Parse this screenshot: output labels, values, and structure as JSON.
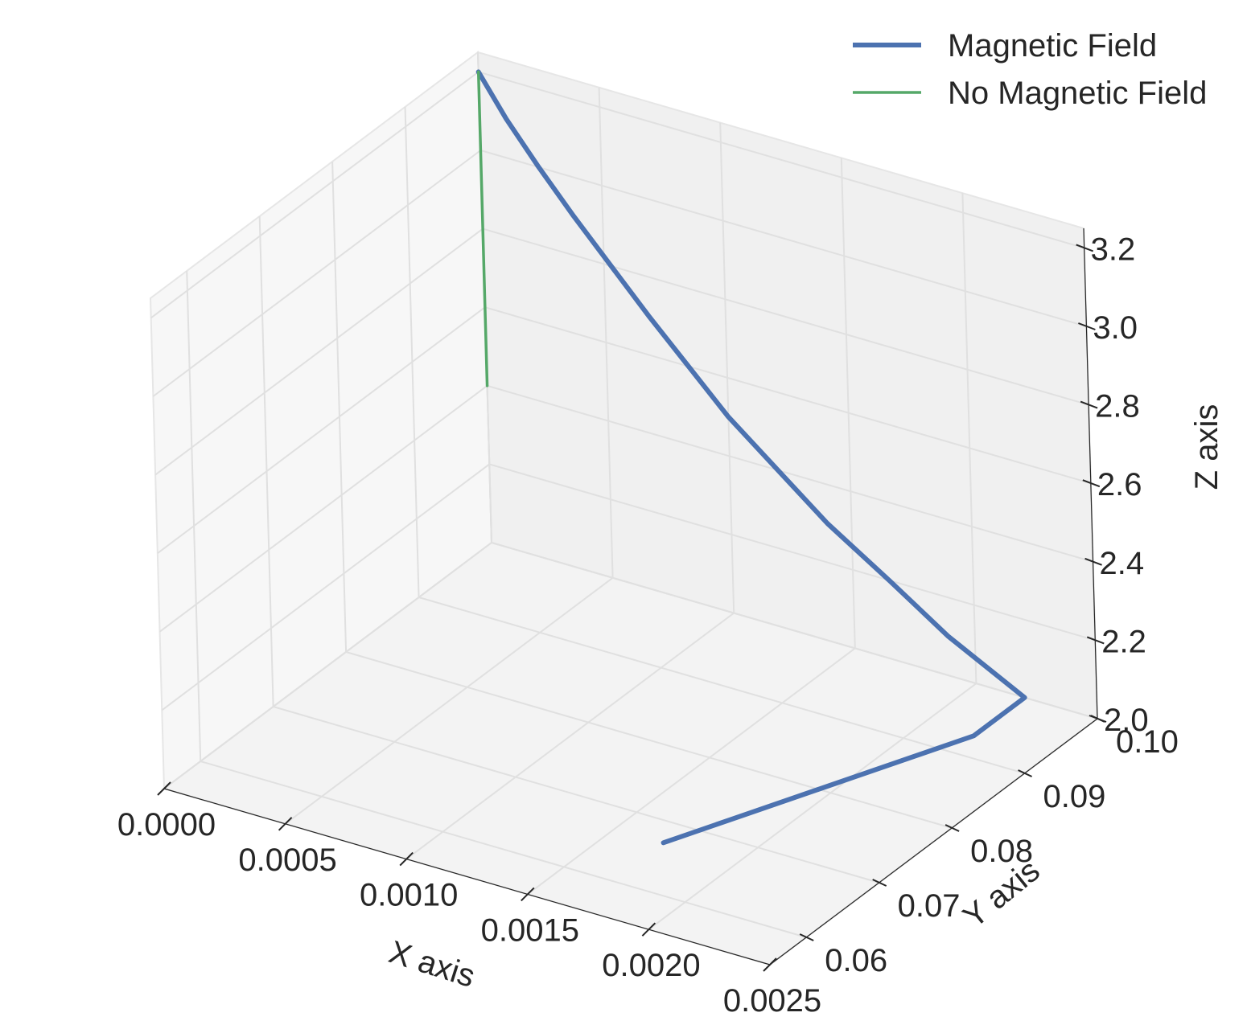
{
  "chart_data": {
    "type": "line",
    "projection": "3d",
    "title": "",
    "xlabel": "X axis",
    "ylabel": "Y axis",
    "zlabel": "Z axis",
    "xlim": [
      0.0,
      0.0025
    ],
    "ylim": [
      0.055,
      0.1
    ],
    "zlim": [
      2.0,
      3.25
    ],
    "x_ticks": [
      {
        "value": 0.0,
        "label": "0.0000"
      },
      {
        "value": 0.0005,
        "label": "0.0005"
      },
      {
        "value": 0.001,
        "label": "0.0010"
      },
      {
        "value": 0.0015,
        "label": "0.0015"
      },
      {
        "value": 0.002,
        "label": "0.0020"
      },
      {
        "value": 0.0025,
        "label": "0.0025"
      }
    ],
    "y_ticks": [
      {
        "value": 0.06,
        "label": "0.06"
      },
      {
        "value": 0.07,
        "label": "0.07"
      },
      {
        "value": 0.08,
        "label": "0.08"
      },
      {
        "value": 0.09,
        "label": "0.09"
      },
      {
        "value": 0.1,
        "label": "0.10"
      }
    ],
    "z_ticks": [
      {
        "value": 2.0,
        "label": "2.0"
      },
      {
        "value": 2.2,
        "label": "2.2"
      },
      {
        "value": 2.4,
        "label": "2.4"
      },
      {
        "value": 2.6,
        "label": "2.6"
      },
      {
        "value": 2.8,
        "label": "2.8"
      },
      {
        "value": 3.0,
        "label": "3.0"
      },
      {
        "value": 3.2,
        "label": "3.2"
      }
    ],
    "grid": true,
    "legend_position": "top-right",
    "series": [
      {
        "name": "Magnetic Field",
        "color": "#4c72b0",
        "points": [
          {
            "x": 0.0,
            "y": 0.1,
            "z": 3.2
          },
          {
            "x": 0.00011,
            "y": 0.1,
            "z": 3.1
          },
          {
            "x": 0.00024,
            "y": 0.1,
            "z": 3.0
          },
          {
            "x": 0.00038,
            "y": 0.1,
            "z": 2.9
          },
          {
            "x": 0.00053,
            "y": 0.1,
            "z": 2.8
          },
          {
            "x": 0.00068,
            "y": 0.1,
            "z": 2.7
          },
          {
            "x": 0.00084,
            "y": 0.1,
            "z": 2.6
          },
          {
            "x": 0.001,
            "y": 0.1,
            "z": 2.5
          },
          {
            "x": 0.0012,
            "y": 0.1,
            "z": 2.4
          },
          {
            "x": 0.0014,
            "y": 0.1,
            "z": 2.3
          },
          {
            "x": 0.00165,
            "y": 0.1,
            "z": 2.2
          },
          {
            "x": 0.00189,
            "y": 0.1,
            "z": 2.1
          },
          {
            "x": 0.0022,
            "y": 0.1,
            "z": 2.0
          },
          {
            "x": 0.0022,
            "y": 0.093,
            "z": 2.0
          },
          {
            "x": 0.0017,
            "y": 0.067,
            "z": 2.0
          }
        ]
      },
      {
        "name": "No Magnetic Field",
        "color": "#55a868",
        "points": [
          {
            "x": 0.0,
            "y": 0.1,
            "z": 3.2
          },
          {
            "x": 0.0,
            "y": 0.1,
            "z": 2.4
          }
        ]
      }
    ]
  }
}
